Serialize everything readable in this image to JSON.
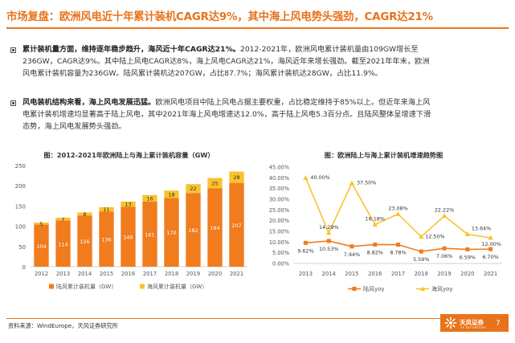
{
  "title": "市场复盘：欧洲风电近十年累计装机CAGR达9%，其中海上风电势头强劲，CAGR达21%",
  "bullets": [
    {
      "highlight": "累计装机量方面，维持逐年稳步趋升，海风近十年CAGR达21%。",
      "lines": [
        "2012-2021年，欧洲风电累计装机量由109GW增长至",
        "236GW，CAGR达9%。其中陆上风电CAGR达8%，海上风电CAGR达21%，海风近年来增长强劲。截至2021年年末，欧洲",
        "风电累计装机容量为236GW。陆风累计装机达207GW，占比87.7%；海风累计装机达28GW，占比11.9%。"
      ]
    },
    {
      "highlight": "风电装机结构来看，海上风电发展迅猛。",
      "lines": [
        "欧洲风电项目中陆上风电占据主要权重，占比稳定维持于85%以上。但近年来海上风",
        "电累计装机增速均显著高于陆上风电，其中2021年海上风电增速达12.0%，高于陆上风电5.3百分点。且陆风整体呈增速下滑",
        "态势，海上风电发展势头强劲。"
      ]
    }
  ],
  "chart_data": [
    {
      "type": "bar",
      "stacked": true,
      "title": "图：2012-2021年欧洲陆上与海上累计装机容量（GW）",
      "categories": [
        "2012",
        "2013",
        "2014",
        "2015",
        "2016",
        "2017",
        "2018",
        "2019",
        "2020",
        "2021"
      ],
      "series": [
        {
          "name": "陆风累计装机量（GW）",
          "values": [
            104,
            114,
            126,
            136,
            148,
            161,
            170,
            182,
            194,
            207
          ],
          "color": "#f07c1e"
        },
        {
          "name": "海风累计装机量（GW）",
          "values": [
            5,
            7,
            8,
            11,
            13,
            16,
            18,
            22,
            25,
            28
          ],
          "color": "#f9c22e"
        }
      ],
      "ylim": [
        0,
        250
      ],
      "yticks": [
        "0",
        "50",
        "100",
        "150",
        "200",
        "250"
      ],
      "grid": false,
      "legend": "bottom"
    },
    {
      "type": "line",
      "title": "图：欧洲陆上与海上累计装机增速趋势图",
      "categories": [
        "2013",
        "2014",
        "2015",
        "2016",
        "2017",
        "2018",
        "2019",
        "2020",
        "2021"
      ],
      "series": [
        {
          "name": "陆风yoy",
          "values": [
            9.62,
            10.53,
            7.94,
            8.82,
            8.78,
            5.59,
            7.06,
            6.59,
            6.7
          ],
          "labels": [
            "9.62%",
            "10.53%",
            "7.94%",
            "8.82%",
            "8.78%",
            "5.59%",
            "7.06%",
            "6.59%",
            "6.70%"
          ],
          "color": "#f07c1e"
        },
        {
          "name": "海风yoy",
          "values": [
            40.0,
            14.29,
            37.5,
            18.18,
            23.08,
            12.5,
            22.22,
            13.64,
            12.0
          ],
          "labels": [
            "40.00%",
            "14.29%",
            "37.50%",
            "18.18%",
            "23.08%",
            "12.50%",
            "22.22%",
            "13.64%",
            "12.00%"
          ],
          "color": "#f9c22e"
        }
      ],
      "ylim": [
        0,
        45
      ],
      "yticks": [
        "0.00%",
        "5.00%",
        "10.00%",
        "15.00%",
        "20.00%",
        "25.00%",
        "30.00%",
        "35.00%",
        "40.00%",
        "45.00%"
      ],
      "grid": false,
      "legend": "bottom"
    }
  ],
  "footer": {
    "source": "资料来源：WindEurope，天风证券研究所",
    "logo_text": "天风证券",
    "logo_sub": "TF SECURITIES",
    "page": "7"
  }
}
